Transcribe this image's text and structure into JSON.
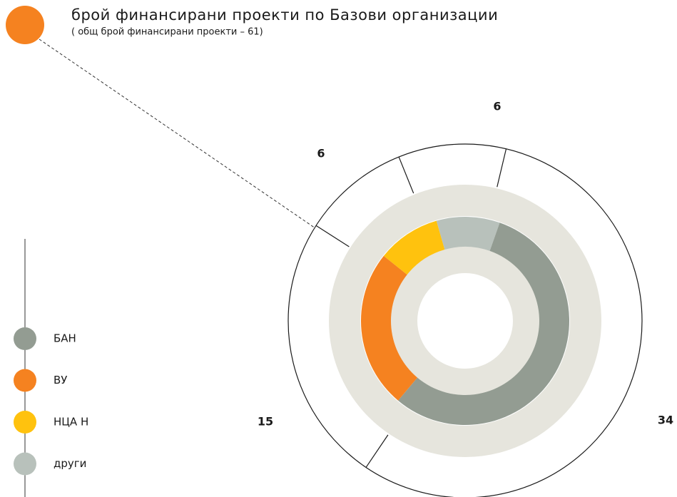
{
  "chart_data": {
    "type": "donut",
    "title": "брой финансирани проекти по Базови организации",
    "subtitle": "( общ брой финансирани проекти – 61)",
    "categories": [
      "БАН",
      "ВУ",
      "НЦА Н",
      "други"
    ],
    "values": [
      34,
      15,
      6,
      6
    ],
    "colors": [
      "#939c92",
      "#f58220",
      "#ffc20e",
      "#b8c1bb"
    ]
  }
}
